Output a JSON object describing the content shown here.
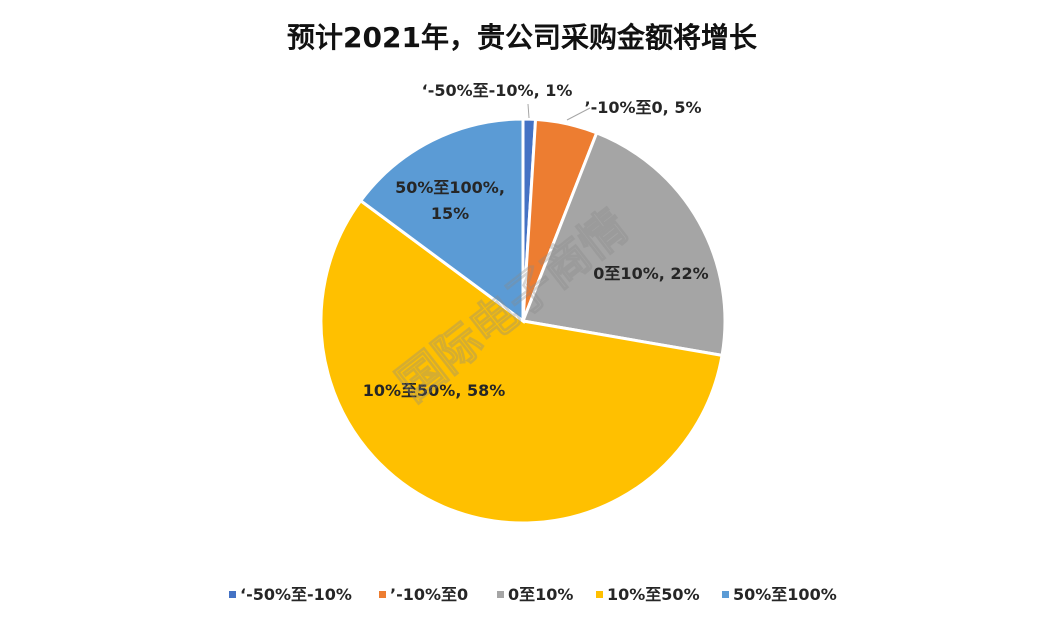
{
  "chart_data": {
    "type": "pie",
    "title": "预计2021年，贵公司采购金额将增长",
    "slices": [
      {
        "name": "‘-50%至-10%",
        "value": 1,
        "label": "‘-50%至-10%, 1%",
        "color": "#4472C4"
      },
      {
        "name": "’-10%至0",
        "value": 5,
        "label": "’-10%至0, 5%",
        "color": "#ED7D31"
      },
      {
        "name": "0至10%",
        "value": 22,
        "label": "0至10%, 22%",
        "color": "#A5A5A5"
      },
      {
        "name": "10%至50%",
        "value": 58,
        "label": "10%至50%, 58%",
        "color": "#FFC000"
      },
      {
        "name": "50%至100%",
        "value": 15,
        "label": "50%至100%,|15%",
        "color": "#5B9BD5"
      }
    ],
    "legend_position": "bottom"
  },
  "watermark": "国际电子商情"
}
